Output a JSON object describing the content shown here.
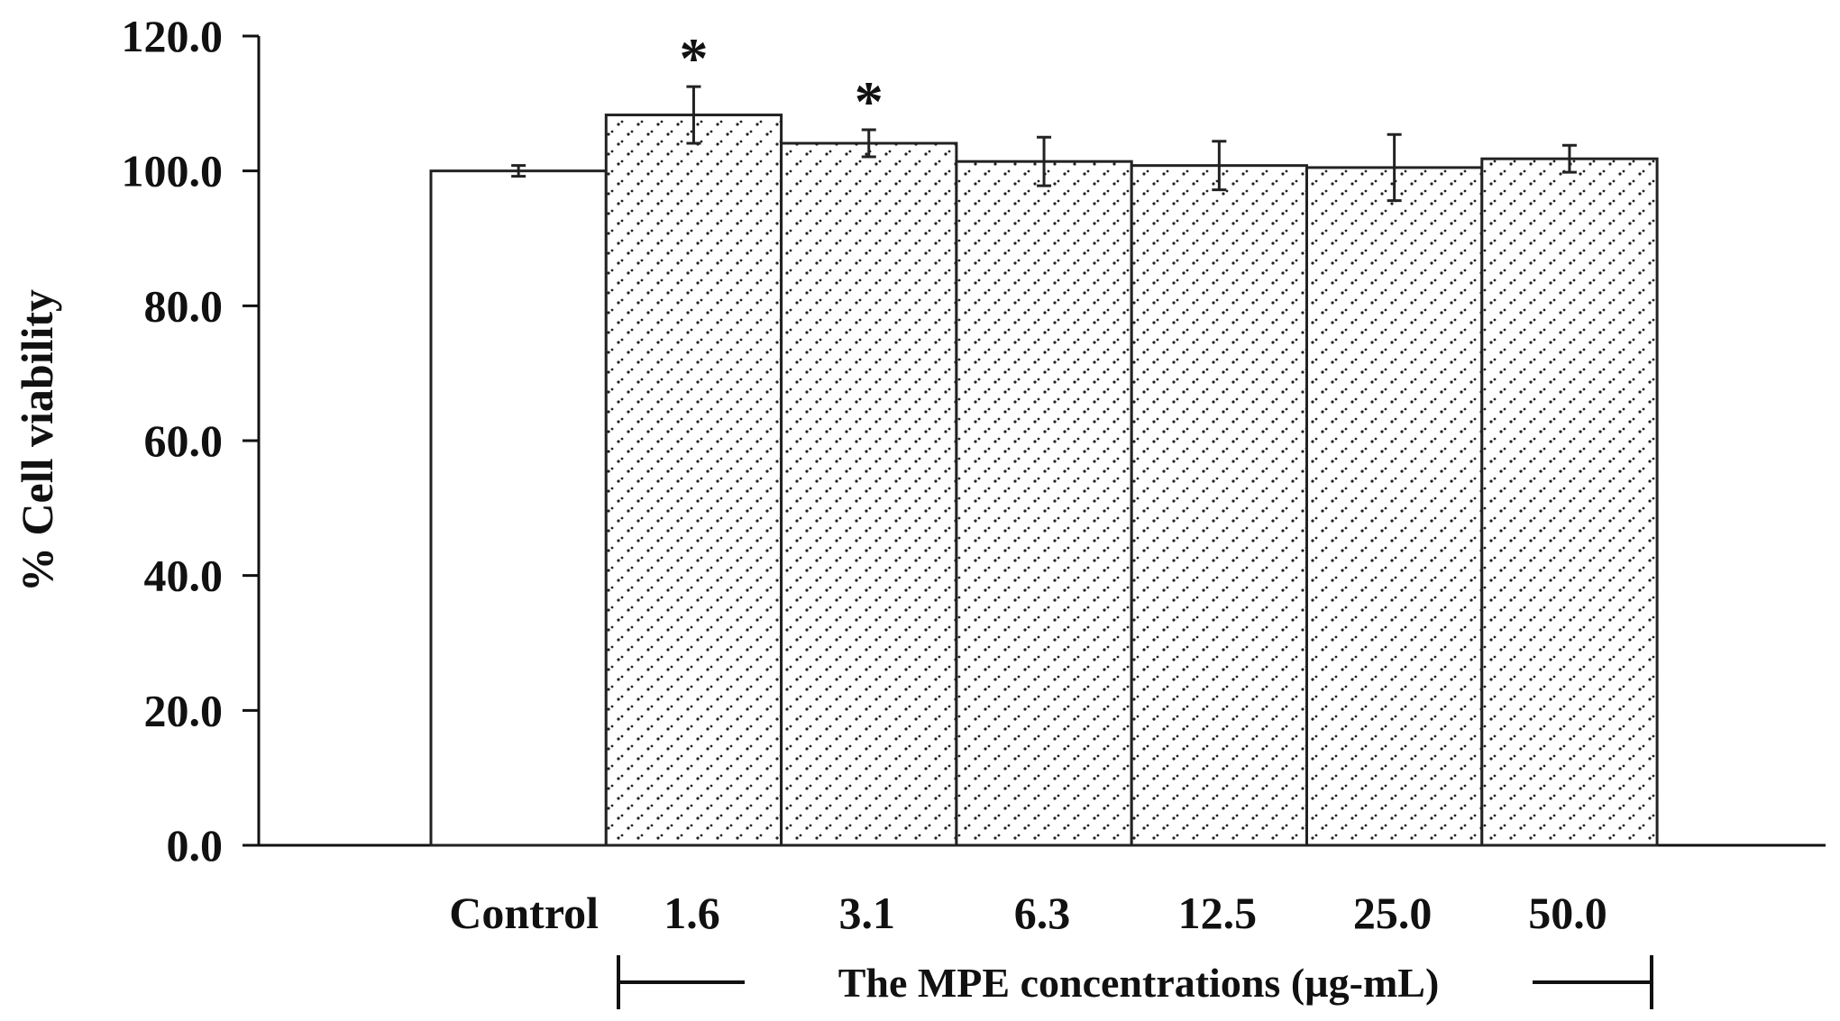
{
  "chart_data": {
    "type": "bar",
    "categories": [
      "Control",
      "1.6",
      "3.1",
      "6.3",
      "12.5",
      "25.0",
      "50.0"
    ],
    "values": [
      100.0,
      108.3,
      104.1,
      101.4,
      100.8,
      100.5,
      101.8
    ],
    "errors": [
      0.8,
      4.2,
      2.0,
      3.6,
      3.6,
      4.9,
      2.0
    ],
    "significance": [
      "",
      "*",
      "*",
      "",
      "",
      "",
      ""
    ],
    "patterns": [
      "solid-white",
      "dotted",
      "dotted",
      "dotted",
      "dotted",
      "dotted",
      "dotted"
    ],
    "ylabel": "% Cell viability",
    "xlabel": "The MPE concentrations (µg-mL)",
    "ylim": [
      0,
      120
    ],
    "yticks": [
      "0.0",
      "20.0",
      "40.0",
      "60.0",
      "80.0",
      "100.0",
      "120.0"
    ],
    "grid": false,
    "colors": {
      "bar_edge": "#222222",
      "dots": "#222222",
      "fill": "#ffffff",
      "axis": "#111111"
    }
  }
}
